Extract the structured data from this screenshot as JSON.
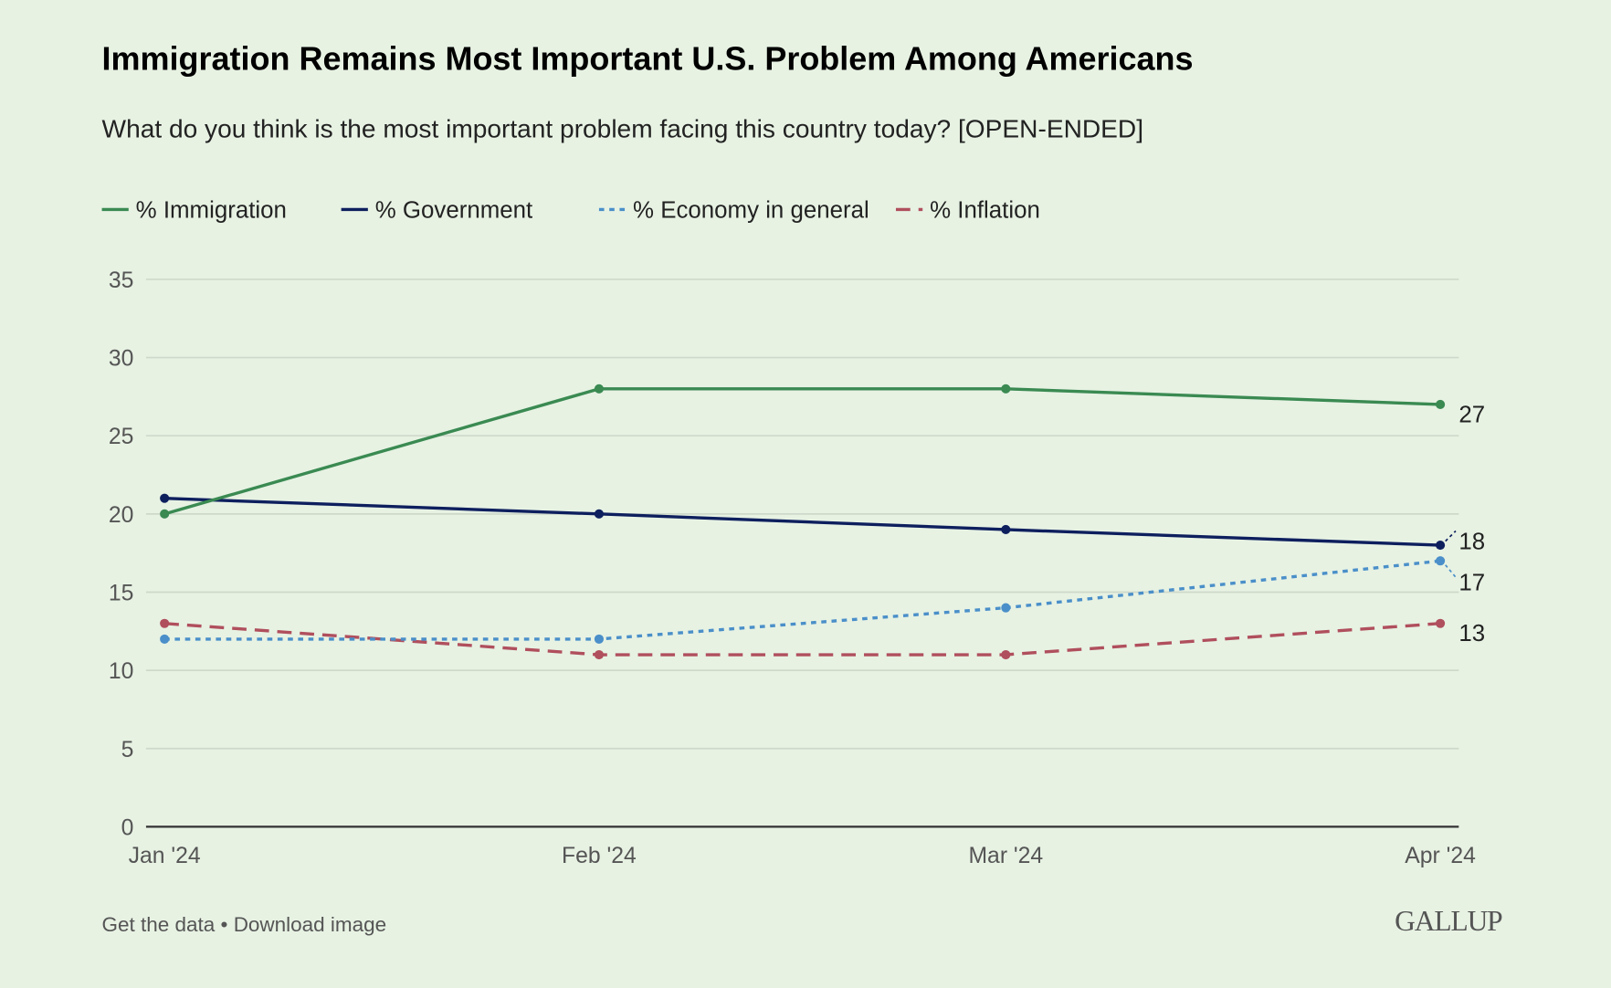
{
  "chart_data": {
    "type": "line",
    "title": "Immigration Remains Most Important U.S. Problem Among Americans",
    "subtitle": "What do you think is the most important problem facing this country today? [OPEN-ENDED]",
    "categories": [
      "Jan '24",
      "Feb '24",
      "Mar '24",
      "Apr '24"
    ],
    "ylim": [
      0,
      35
    ],
    "yticks": [
      0,
      5,
      10,
      15,
      20,
      25,
      30,
      35
    ],
    "grid": true,
    "legend_position": "top-left",
    "series": [
      {
        "name": "% Immigration",
        "values": [
          20,
          28,
          28,
          27
        ],
        "color": "#3a8a52",
        "dash": "solid"
      },
      {
        "name": "% Government",
        "values": [
          21,
          20,
          19,
          18
        ],
        "color": "#0e1f5e",
        "dash": "solid"
      },
      {
        "name": "% Economy in general",
        "values": [
          12,
          12,
          14,
          17
        ],
        "color": "#4a8fc9",
        "dash": "dotted"
      },
      {
        "name": "% Inflation",
        "values": [
          13,
          11,
          11,
          13
        ],
        "color": "#b04f5d",
        "dash": "dashed"
      }
    ],
    "end_labels": [
      "27",
      "18",
      "17",
      "13"
    ]
  },
  "footer": {
    "get_data": "Get the data",
    "separator": " • ",
    "download": "Download image",
    "logo": "GALLUP"
  }
}
